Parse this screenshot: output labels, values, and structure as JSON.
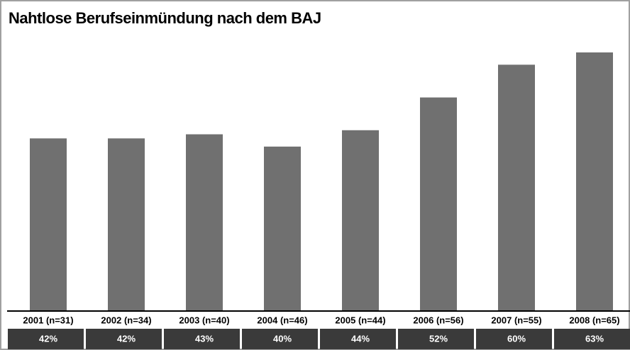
{
  "chart_data": {
    "type": "bar",
    "title": "Nahtlose Berufseinmündung nach dem BAJ",
    "categories": [
      "2001 (n=31)",
      "2002 (n=34)",
      "2003 (n=40)",
      "2004 (n=46)",
      "2005 (n=44)",
      "2006 (n=56)",
      "2007 (n=55)",
      "2008 (n=65)"
    ],
    "values": [
      42,
      42,
      43,
      40,
      44,
      52,
      60,
      63
    ],
    "value_labels": [
      "42%",
      "42%",
      "43%",
      "40%",
      "44%",
      "52%",
      "60%",
      "63%"
    ],
    "color": "#707070"
  }
}
